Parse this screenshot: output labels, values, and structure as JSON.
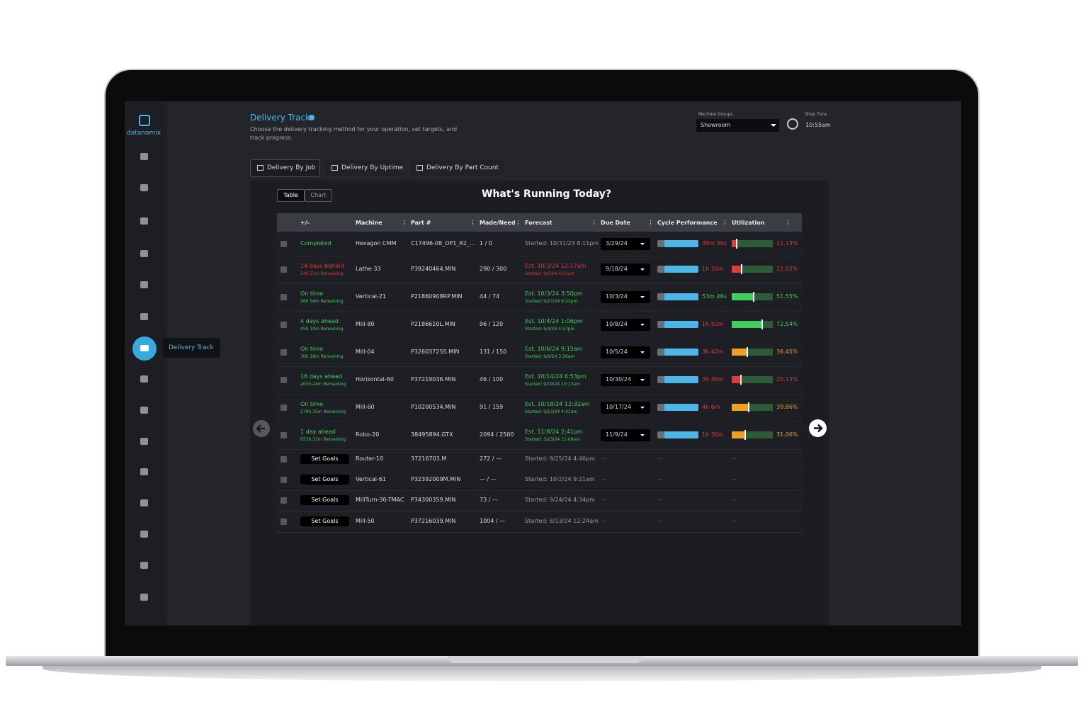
{
  "brand": "datanomix",
  "header": {
    "title": "Delivery Track",
    "subtitle": "Choose the delivery tracking method for your operation, set targets, and track progress."
  },
  "machine_groups": {
    "label": "Machine Groups",
    "value": "Showroom"
  },
  "shop_time": {
    "label": "Shop Time",
    "value": "10:55am"
  },
  "tooltip": "Delivery Track",
  "tabs": [
    "Delivery By Job",
    "Delivery By Uptime",
    "Delivery By Part Count"
  ],
  "view_toggle": [
    "Table",
    "Chart"
  ],
  "panel_title": "What's Running Today?",
  "table": {
    "columns": [
      "+/-",
      "Machine",
      "Part #",
      "Made/Need",
      "Forecast",
      "Due Date",
      "Cycle Performance",
      "Utilization"
    ],
    "rows": [
      {
        "status": "Completed",
        "status_color": "#3ecf5c",
        "machine": "Hexagon CMM",
        "part": "C17496-08_OP1_R2_...",
        "made_need": "1 / 0",
        "forecast": "Started: 10/31/23 8:11pm",
        "forecast_color": "#9a9ca3",
        "due_date": "3/29/24",
        "cycle": "30m 39s",
        "cycle_color": "#e03a3a",
        "utilization": "11.13%",
        "util_color": "#e03a3a"
      },
      {
        "status": "14 days behind",
        "status_sub": "14h 21m Remaining",
        "status_color": "#e03a3a",
        "machine": "Lathe-33",
        "part": "P39240464.MIN",
        "made_need": "290 / 300",
        "forecast": "Est. 10/3/24 12:17am",
        "forecast_sub": "Started: 9/6/24 4:51am",
        "forecast_color": "#e03a3a",
        "due_date": "9/18/24",
        "cycle": "1h 26m",
        "cycle_color": "#e03a3a",
        "utilization": "22.52%",
        "util_color": "#e03a3a"
      },
      {
        "status": "On time",
        "status_sub": "26h 54m Remaining",
        "status_color": "#3ecf5c",
        "machine": "Vertical-21",
        "part": "P21860908RP.MIN",
        "made_need": "44 / 74",
        "forecast": "Est. 10/3/24 3:50pm",
        "forecast_sub": "Started: 9/27/24 9:23pm",
        "forecast_color": "#3ecf5c",
        "due_date": "10/3/24",
        "cycle": "53m 48s",
        "cycle_color": "#3ecf5c",
        "utilization": "51.55%",
        "util_color": "#3ecf5c"
      },
      {
        "status": "4 days ahead",
        "status_sub": "45h 10m Remaining",
        "status_color": "#3ecf5c",
        "machine": "Mill-80",
        "part": "P2186610L.MIN",
        "made_need": "96 / 120",
        "forecast": "Est. 10/4/24 1:06pm",
        "forecast_sub": "Started: 9/4/24 4:57pm",
        "forecast_color": "#3ecf5c",
        "due_date": "10/8/24",
        "cycle": "1h 52m",
        "cycle_color": "#e03a3a",
        "utilization": "72.54%",
        "util_color": "#3ecf5c"
      },
      {
        "status": "On time",
        "status_sub": "70h 18m Remaining",
        "status_color": "#3ecf5c",
        "machine": "Mill-04",
        "part": "P32603725S.MIN",
        "made_need": "131 / 150",
        "forecast": "Est. 10/6/24 9:15am",
        "forecast_sub": "Started: 9/6/24 3:26am",
        "forecast_color": "#3ecf5c",
        "due_date": "10/5/24",
        "cycle": "3h 42m",
        "cycle_color": "#e03a3a",
        "utilization": "36.45%",
        "util_color": "#f0a020"
      },
      {
        "status": "16 days ahead",
        "status_sub": "203h 24m Remaining",
        "status_color": "#3ecf5c",
        "machine": "Horizontal-60",
        "part": "P37219036.MIN",
        "made_need": "46 / 100",
        "forecast": "Est. 10/14/24 6:53pm",
        "forecast_sub": "Started: 9/19/24 10:13am",
        "forecast_color": "#3ecf5c",
        "due_date": "10/30/24",
        "cycle": "3h 46m",
        "cycle_color": "#e03a3a",
        "utilization": "20.13%",
        "util_color": "#e03a3a"
      },
      {
        "status": "On time",
        "status_sub": "279h 35m Remaining",
        "status_color": "#3ecf5c",
        "machine": "Mill-60",
        "part": "P10200534.MIN",
        "made_need": "91 / 159",
        "forecast": "Est. 10/18/24 12:32am",
        "forecast_sub": "Started: 9/13/24 4:41am",
        "forecast_color": "#3ecf5c",
        "due_date": "10/17/24",
        "cycle": "4h 6m",
        "cycle_color": "#e03a3a",
        "utilization": "39.86%",
        "util_color": "#f0a020"
      },
      {
        "status": "1 day ahead",
        "status_sub": "653h 31m Remaining",
        "status_color": "#3ecf5c",
        "machine": "Robo-20",
        "part": "38495894.GTX",
        "made_need": "2094 / 2500",
        "forecast": "Est. 11/8/24 2:41pm",
        "forecast_sub": "Started: 3/23/24 11:09am",
        "forecast_color": "#3ecf5c",
        "due_date": "11/9/24",
        "cycle": "1h 36m",
        "cycle_color": "#e03a3a",
        "utilization": "31.06%",
        "util_color": "#f0a020"
      },
      {
        "button": "Set Goals",
        "machine": "Router-10",
        "part": "37216703.M",
        "made_need": "272 / —",
        "forecast": "Started: 9/25/24 4:46pm",
        "forecast_color": "#9a9ca3",
        "due_date": "—",
        "cycle": "—",
        "utilization": "—"
      },
      {
        "button": "Set Goals",
        "machine": "Vertical-61",
        "part": "P32392009M.MIN",
        "made_need": "— / —",
        "forecast": "Started: 10/2/24 9:21am",
        "forecast_color": "#9a9ca3",
        "due_date": "—",
        "cycle": "—",
        "utilization": "—"
      },
      {
        "button": "Set Goals",
        "machine": "MillTurn-30-TMAC",
        "part": "P34300359.MIN",
        "made_need": "73 / —",
        "forecast": "Started: 9/24/24 4:34pm",
        "forecast_color": "#9a9ca3",
        "due_date": "—",
        "cycle": "—",
        "utilization": "—"
      },
      {
        "button": "Set Goals",
        "machine": "Mill-50",
        "part": "P37216039.MIN",
        "made_need": "1004 / —",
        "forecast": "Started: 8/13/24 12:24am",
        "forecast_color": "#9a9ca3",
        "due_date": "—",
        "cycle": "—",
        "utilization": "—"
      }
    ]
  }
}
